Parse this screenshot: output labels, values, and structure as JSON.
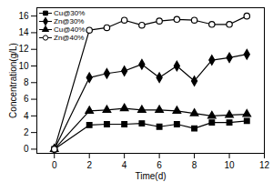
{
  "chart_data": {
    "type": "line",
    "x_label": "Time(d)",
    "y_label": "Concentration(g/L)",
    "x": [
      0,
      2,
      3,
      4,
      5,
      6,
      7,
      8,
      9,
      10,
      11
    ],
    "series": [
      {
        "name": "Cu@30%",
        "color": "#000000",
        "marker": "square",
        "values": [
          0,
          2.9,
          3.0,
          3.0,
          3.1,
          2.7,
          3.0,
          2.5,
          3.2,
          3.2,
          3.4
        ]
      },
      {
        "name": "Zn@30%",
        "color": "#000000",
        "marker": "diamond",
        "values": [
          0,
          8.6,
          9.1,
          9.4,
          10.2,
          8.6,
          10.0,
          8.2,
          10.7,
          11.0,
          11.4
        ]
      },
      {
        "name": "Cu@40%",
        "color": "#000000",
        "marker": "triangle",
        "values": [
          0,
          4.6,
          4.7,
          4.9,
          4.7,
          4.7,
          4.6,
          4.3,
          4.0,
          4.1,
          4.2
        ]
      },
      {
        "name": "Zn@40%",
        "color": "#000000",
        "marker": "circle-open",
        "values": [
          0,
          14.3,
          14.6,
          15.5,
          14.9,
          15.4,
          15.6,
          15.5,
          15.0,
          15.0,
          16.0
        ]
      }
    ],
    "xlim": [
      -1,
      12
    ],
    "xticks": [
      0,
      2,
      4,
      6,
      8,
      10,
      12
    ],
    "ylim": [
      -0.5,
      17
    ],
    "yticks": [
      0,
      2,
      4,
      6,
      8,
      10,
      12,
      14,
      16
    ],
    "grid": false,
    "legend": "top-left"
  }
}
